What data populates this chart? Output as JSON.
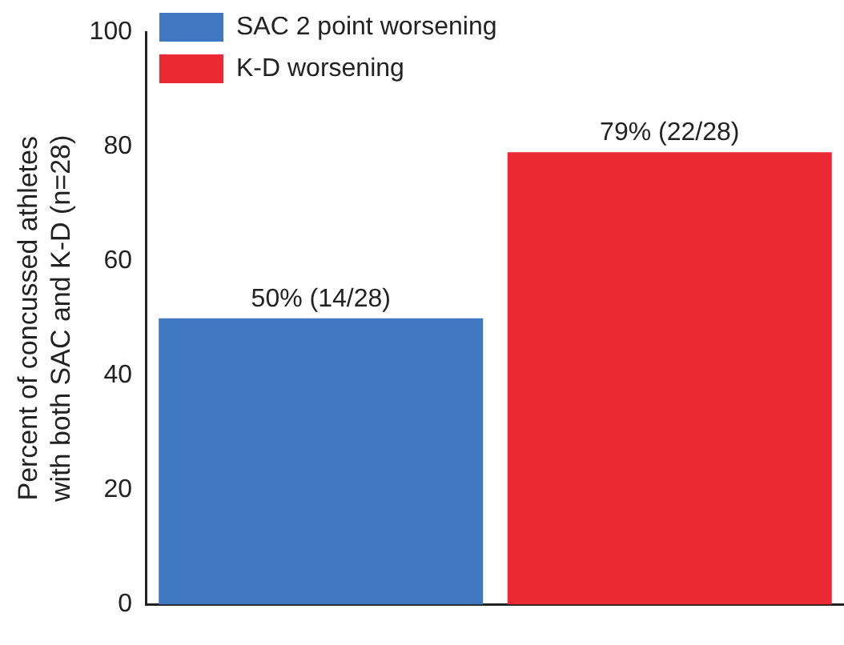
{
  "chart_data": {
    "type": "bar",
    "ylabel": "Percent of concussed athletes\nwith both SAC and K-D (n=28)",
    "categories": [
      null,
      null
    ],
    "series": [
      {
        "name": "SAC 2 point worsening",
        "color": "#3f78c1",
        "values": [
          50,
          null
        ],
        "value_labels": [
          "50% (14/28)",
          null
        ]
      },
      {
        "name": "K-D worsening",
        "color": "#ec2a33",
        "values": [
          null,
          79
        ],
        "value_labels": [
          null,
          "79% (22/28)"
        ]
      }
    ],
    "ylim": [
      0,
      100
    ],
    "yticks": [
      0,
      20,
      40,
      60,
      80,
      100
    ],
    "grid": false,
    "legend": "top left"
  }
}
